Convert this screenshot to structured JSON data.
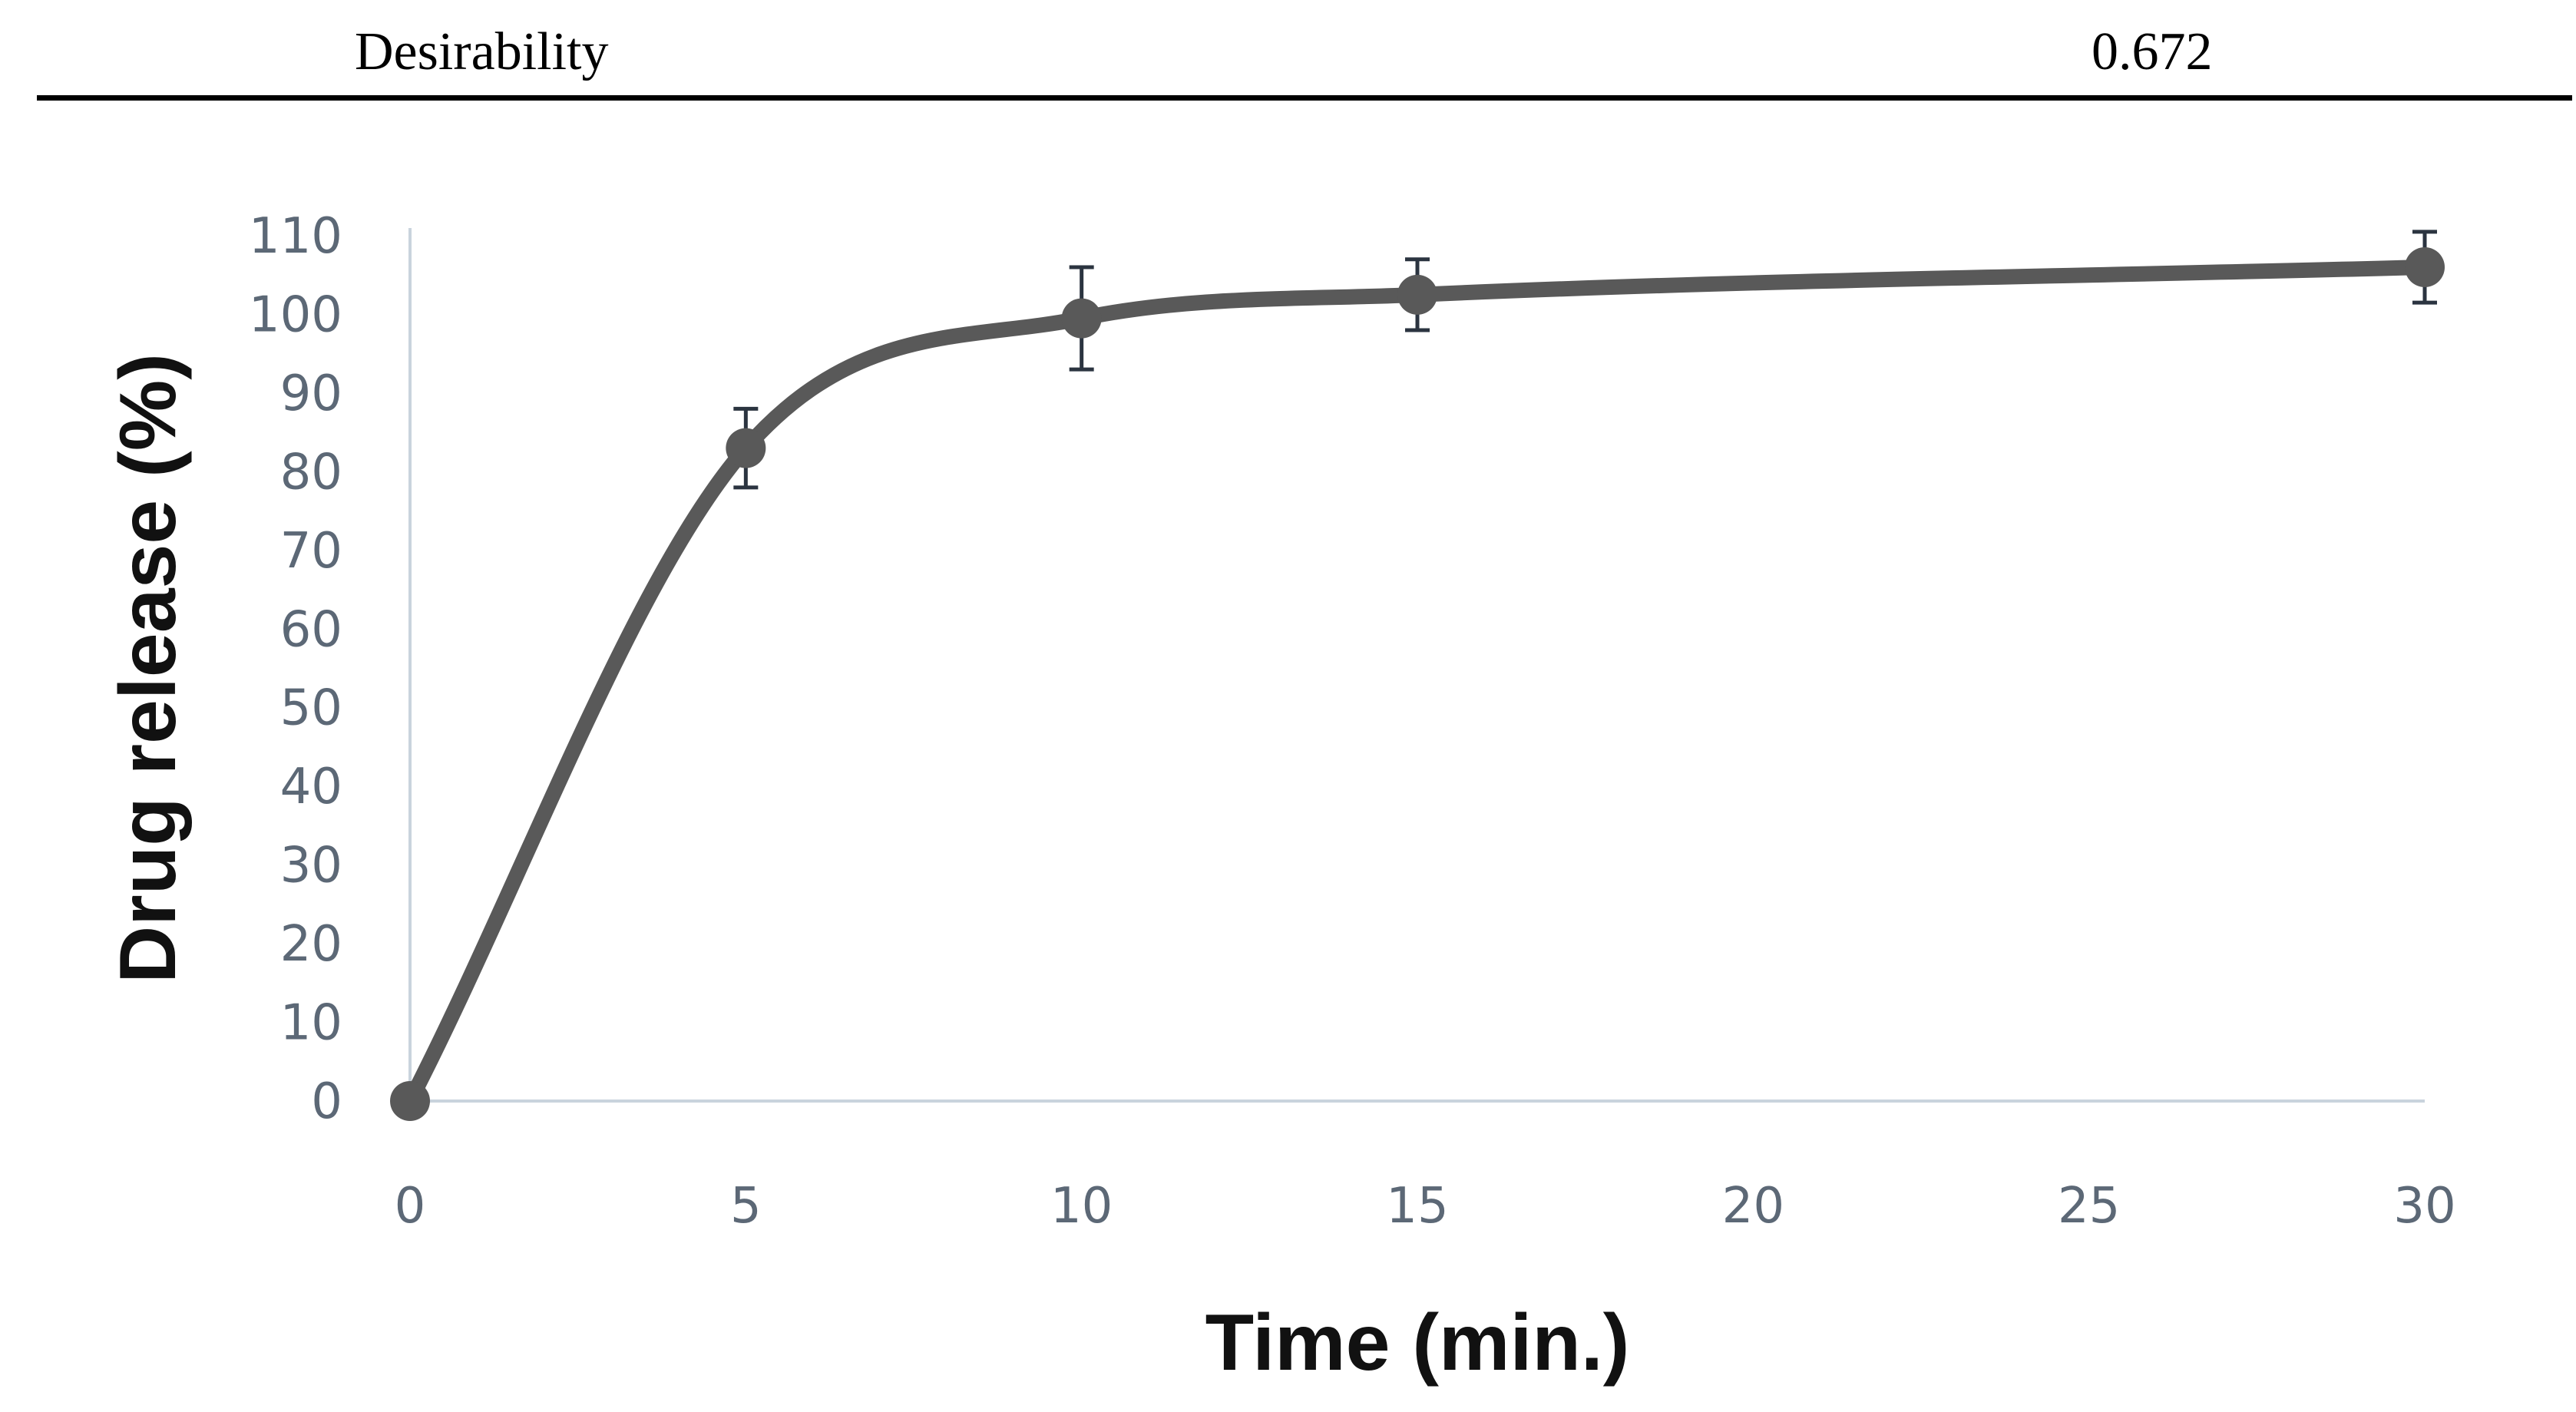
{
  "table": {
    "label": "Desirability",
    "value": "0.672"
  },
  "chart_data": {
    "type": "line",
    "xlabel": "Time (min.)",
    "ylabel": "Drug release (%)",
    "xlim": [
      0,
      30
    ],
    "ylim": [
      0,
      110
    ],
    "x_ticks": [
      0,
      5,
      10,
      15,
      20,
      25,
      30
    ],
    "y_ticks": [
      0,
      10,
      20,
      30,
      40,
      50,
      60,
      70,
      80,
      90,
      100,
      110
    ],
    "grid": false,
    "smoothed": true,
    "series": [
      {
        "x": [
          0,
          5,
          10,
          15,
          30
        ],
        "y": [
          0,
          83,
          99.5,
          102.5,
          106
        ],
        "error": [
          0,
          5,
          6.5,
          4.5,
          4.5
        ],
        "color": "#595959"
      }
    ]
  }
}
